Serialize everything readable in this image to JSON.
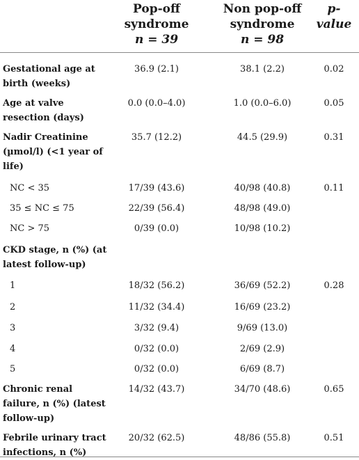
{
  "header": {
    "col1_line1": "Pop-off",
    "col1_line2": "syndrome",
    "col1_n": "n = 39",
    "col2_line1": "Non pop-off",
    "col2_line2": "syndrome",
    "col2_n": "n = 98",
    "col3": "p-value"
  },
  "rows": [
    {
      "label": "Gestational age at birth (weeks)",
      "v1": "36.9 (2.1)",
      "v2": "38.1 (2.2)",
      "p": "0.02"
    },
    {
      "label": "Age at valve resection (days)",
      "v1": "0.0 (0.0–4.0)",
      "v2": "1.0 (0.0–6.0)",
      "p": "0.05"
    },
    {
      "label": "Nadir Creatinine (µmol/l) (<1 year of life)",
      "v1": "35.7 (12.2)",
      "v2": "44.5 (29.9)",
      "p": "0.31"
    },
    {
      "label": "NC < 35",
      "v1": "17/39 (43.6)",
      "v2": "40/98 (40.8)",
      "p": "0.11"
    },
    {
      "label": "35 ≤ NC ≤ 75",
      "v1": "22/39 (56.4)",
      "v2": "48/98 (49.0)",
      "p": ""
    },
    {
      "label": "NC > 75",
      "v1": "0/39 (0.0)",
      "v2": "10/98 (10.2)",
      "p": ""
    },
    {
      "label": "CKD stage, n (%) (at latest follow-up)",
      "v1": "",
      "v2": "",
      "p": ""
    },
    {
      "label": "1",
      "v1": "18/32 (56.2)",
      "v2": "36/69 (52.2)",
      "p": "0.28"
    },
    {
      "label": "2",
      "v1": "11/32 (34.4)",
      "v2": "16/69 (23.2)",
      "p": ""
    },
    {
      "label": "3",
      "v1": "3/32 (9.4)",
      "v2": "9/69 (13.0)",
      "p": ""
    },
    {
      "label": "4",
      "v1": "0/32 (0.0)",
      "v2": "2/69 (2.9)",
      "p": ""
    },
    {
      "label": "5",
      "v1": "0/32 (0.0)",
      "v2": "6/69 (8.7)",
      "p": ""
    },
    {
      "label": "Chronic renal failure, n (%) (latest follow-up)",
      "v1": "14/32 (43.7)",
      "v2": "34/70 (48.6)",
      "p": "0.65"
    },
    {
      "label": "Febrile urinary tract infections, n (%)",
      "v1": "20/32 (62.5)",
      "v2": "48/86 (55.8)",
      "p": "0.51"
    }
  ]
}
